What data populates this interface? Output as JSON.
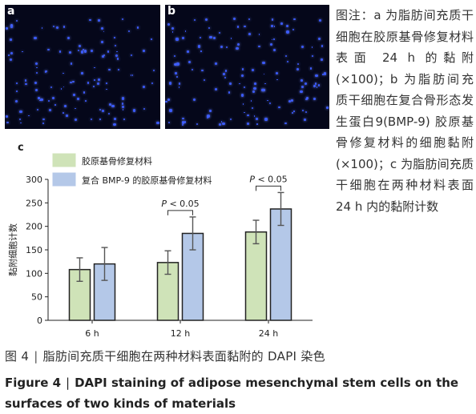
{
  "panels": [
    {
      "label": "a"
    },
    {
      "label": "b"
    }
  ],
  "note": "图注：a 为脂肪间充质干细胞在胶原基骨修复材料表面 24 h 的黏附 (×100)；b 为脂肪间充质干细胞在复合骨形态发生蛋白9(BMP-9) 胶原基骨修复材料的细胞黏附 (×100)；c 为脂肪间充质干细胞在两种材料表面 24 h 内的黏附计数",
  "caption": {
    "cn_label": "图 4",
    "cn_sep": "|",
    "cn_text": "脂肪间充质干细胞在两种材料表面黏附的 DAPI 染色",
    "en_label": "Figure 4",
    "en_sep": "|",
    "en_text": "DAPI staining of adipose mesenchymal stem cells on the surfaces of two kinds of materials"
  },
  "colors": {
    "series1": "#cfe3b8",
    "series2": "#b4c8e8",
    "border": "#222222",
    "error": "#555555",
    "panel_bg": "#05071a",
    "cell": "#3b5bff"
  },
  "chart_data": {
    "type": "bar",
    "panel_label": "c",
    "categories": [
      "6 h",
      "12 h",
      "24 h"
    ],
    "series": [
      {
        "name": "胶原基骨修复材料",
        "values": [
          108,
          123,
          188
        ],
        "errors": [
          25,
          25,
          25
        ]
      },
      {
        "name": "复合 BMP-9 的胶原基骨修复材料",
        "values": [
          120,
          185,
          237
        ],
        "errors": [
          35,
          35,
          35
        ]
      }
    ],
    "ylabel": "黏附细胞计数",
    "xlabel": "",
    "ylim": [
      0,
      300
    ],
    "yticks": [
      0,
      50,
      100,
      150,
      200,
      250,
      300
    ],
    "legend_position": "top",
    "annotations": [
      {
        "text": "P < 0.05",
        "category": "12 h"
      },
      {
        "text": "P < 0.05",
        "category": "24 h"
      }
    ]
  }
}
